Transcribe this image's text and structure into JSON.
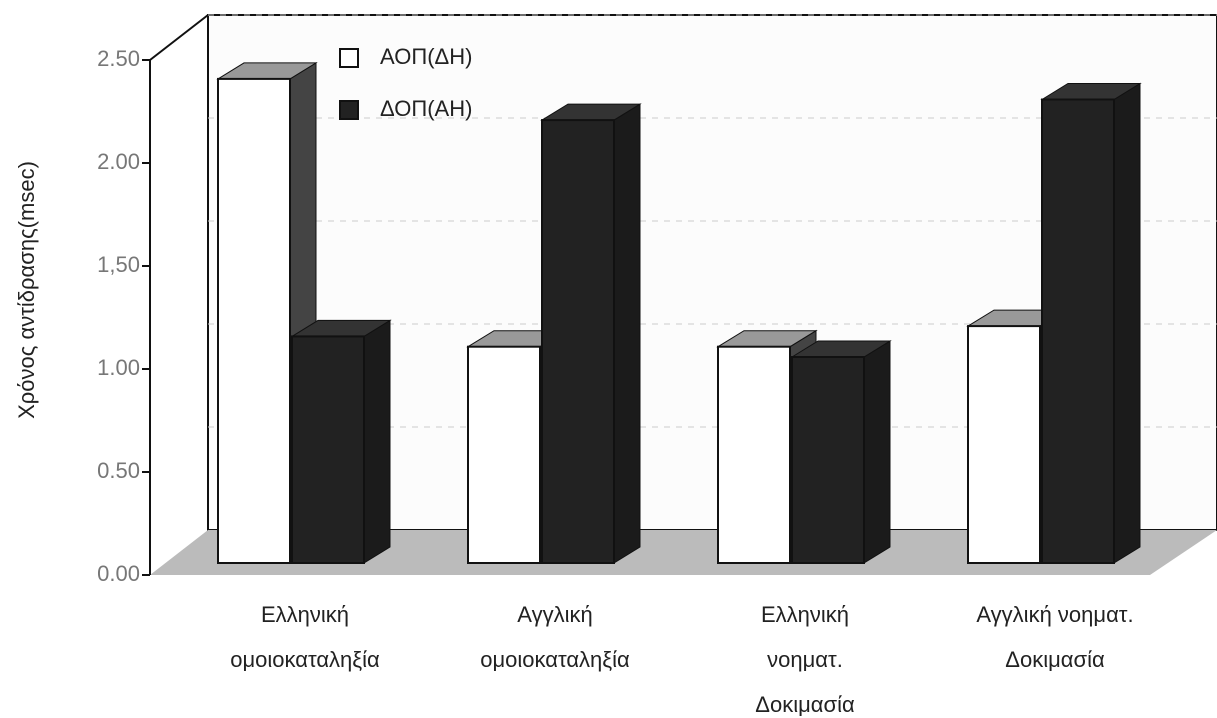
{
  "chart_data": {
    "type": "bar3d",
    "y_label": "Χρόνος αντίδρασης(msec)",
    "categories": [
      [
        "Ελληνική",
        "ομοιοκαταληξία"
      ],
      [
        "Αγγλική",
        "ομοιοκαταληξία"
      ],
      [
        "Ελληνική",
        "νοηματ.",
        "Δοκιμασία"
      ],
      [
        "Αγγλική νοηματ.",
        "Δοκιμασία"
      ]
    ],
    "series": [
      {
        "name": "ΑΟΠ(ΔΗ)",
        "color": "#ffffff",
        "values": [
          2.35,
          1.05,
          1.05,
          1.15
        ]
      },
      {
        "name": "ΔΟΠ(ΑΗ)",
        "color": "#222222",
        "values": [
          1.1,
          2.15,
          1.0,
          2.25
        ]
      }
    ],
    "ylim": [
      0,
      2.5
    ],
    "yticks": [
      {
        "value": 0,
        "label": "0.00"
      },
      {
        "value": 0.5,
        "label": "0.50"
      },
      {
        "value": 1,
        "label": "1.00"
      },
      {
        "value": 1.5,
        "label": "1,50"
      },
      {
        "value": 2,
        "label": "2.00"
      },
      {
        "value": 2.5,
        "label": "2.50"
      }
    ],
    "grid": true,
    "legend": "top-left"
  }
}
